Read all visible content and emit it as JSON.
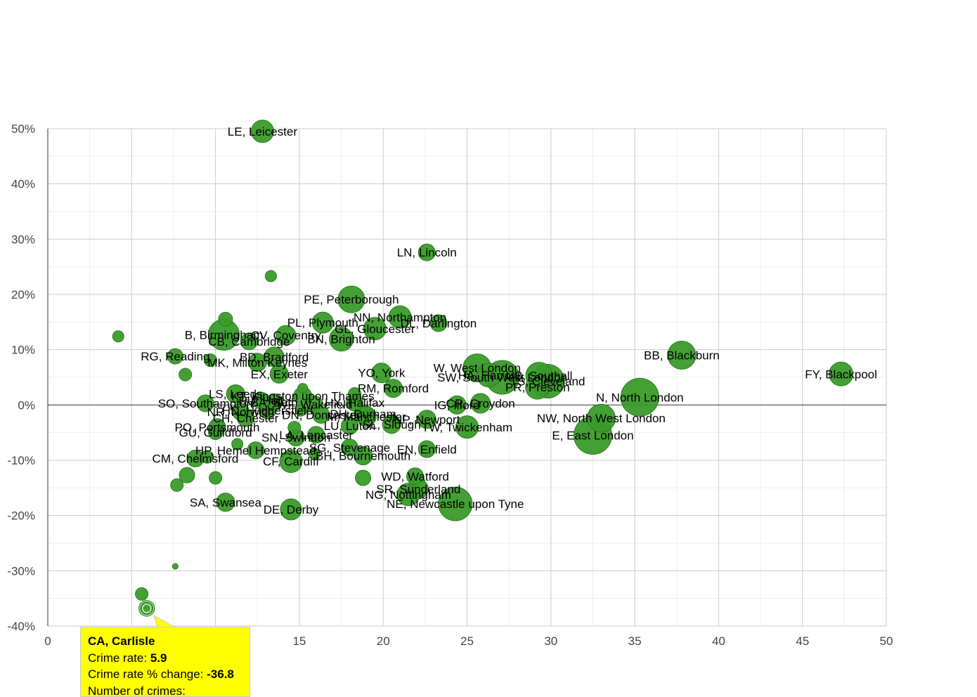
{
  "chart_data": {
    "type": "scatter",
    "variant": "bubble",
    "title": "",
    "xlabel": "",
    "ylabel": "",
    "xlim": [
      0,
      50
    ],
    "ylim": [
      -40,
      50
    ],
    "x_ticks": [
      "0",
      "5",
      "10",
      "15",
      "20",
      "25",
      "30",
      "35",
      "40",
      "45",
      "50"
    ],
    "y_ticks": [
      "-40%",
      "-30%",
      "-20%",
      "-10%",
      "0%",
      "10%",
      "20%",
      "30%",
      "40%",
      "50%"
    ],
    "grid": true,
    "colors": {
      "bubble": "#2ca02c",
      "bubble_fill": "#3a9b2a",
      "bubble_stroke": "#2a7d1e",
      "grid": "#cccccc",
      "minor_grid": "#eeeeee",
      "zero_line": "#333333",
      "tooltip_bg": "#ffff00"
    },
    "points": [
      {
        "label": "LE, Leicester",
        "x": 12.8,
        "y": 49.5,
        "size": 16
      },
      {
        "label": "LN, Lincoln",
        "x": 22.6,
        "y": 27.6,
        "size": 12
      },
      {
        "label": "",
        "x": 13.3,
        "y": 23.3,
        "size": 8
      },
      {
        "label": "PE, Peterborough",
        "x": 18.1,
        "y": 19.1,
        "size": 19
      },
      {
        "label": "NN, Northampton",
        "x": 21.0,
        "y": 15.9,
        "size": 16
      },
      {
        "label": "DL, Darlington",
        "x": 23.3,
        "y": 14.8,
        "size": 12
      },
      {
        "label": "PL, Plymouth",
        "x": 16.4,
        "y": 14.9,
        "size": 15
      },
      {
        "label": "GL, Gloucester",
        "x": 19.5,
        "y": 13.8,
        "size": 16
      },
      {
        "label": "BN, Brighton",
        "x": 17.5,
        "y": 11.9,
        "size": 17
      },
      {
        "label": "B, Birmingham",
        "x": 10.5,
        "y": 12.7,
        "size": 22
      },
      {
        "label": "CV, Coventry",
        "x": 14.2,
        "y": 12.6,
        "size": 14
      },
      {
        "label": "CB, Cambridge",
        "x": 12.0,
        "y": 11.5,
        "size": 12
      },
      {
        "label": "",
        "x": 10.6,
        "y": 15.5,
        "size": 10
      },
      {
        "label": "",
        "x": 4.2,
        "y": 12.4,
        "size": 8
      },
      {
        "label": "RG, Reading",
        "x": 7.6,
        "y": 8.8,
        "size": 11
      },
      {
        "label": "BD, Bradford",
        "x": 13.5,
        "y": 8.7,
        "size": 14
      },
      {
        "label": "MK, Milton Keynes",
        "x": 12.5,
        "y": 7.7,
        "size": 13
      },
      {
        "label": "",
        "x": 9.7,
        "y": 8.1,
        "size": 9
      },
      {
        "label": "EX, Exeter",
        "x": 13.8,
        "y": 5.6,
        "size": 13
      },
      {
        "label": "",
        "x": 8.2,
        "y": 5.5,
        "size": 9
      },
      {
        "label": "YO, York",
        "x": 19.9,
        "y": 5.8,
        "size": 14
      },
      {
        "label": "RM, Romford",
        "x": 20.6,
        "y": 3.0,
        "size": 13
      },
      {
        "label": "W, West London",
        "x": 25.6,
        "y": 6.7,
        "size": 20
      },
      {
        "label": "HA, Harrow",
        "x": 26.3,
        "y": 5.4,
        "size": 17
      },
      {
        "label": "SW, South West London",
        "x": 27.1,
        "y": 5.0,
        "size": 24
      },
      {
        "label": "UB, Southall",
        "x": 29.3,
        "y": 5.3,
        "size": 19
      },
      {
        "label": "TS, Cleveland",
        "x": 29.8,
        "y": 4.3,
        "size": 24
      },
      {
        "label": "PR, Preston",
        "x": 29.2,
        "y": 3.2,
        "size": 17
      },
      {
        "label": "N, North London",
        "x": 35.3,
        "y": 1.4,
        "size": 27
      },
      {
        "label": "BB, Blackburn",
        "x": 37.8,
        "y": 9.0,
        "size": 20
      },
      {
        "label": "FY, Blackpool",
        "x": 47.3,
        "y": 5.6,
        "size": 17
      },
      {
        "label": "IG, Ilford",
        "x": 24.4,
        "y": 0.0,
        "size": 13
      },
      {
        "label": "CR, Croydon",
        "x": 25.8,
        "y": 0.3,
        "size": 14
      },
      {
        "label": "NW, North West London",
        "x": 33.0,
        "y": -2.4,
        "size": 20
      },
      {
        "label": "E, East London",
        "x": 32.5,
        "y": -5.5,
        "size": 27
      },
      {
        "label": "TW, Twickenham",
        "x": 25.0,
        "y": -4.0,
        "size": 16
      },
      {
        "label": "NP, Newport",
        "x": 22.6,
        "y": -2.6,
        "size": 13
      },
      {
        "label": "LS, Leeds",
        "x": 11.2,
        "y": 2.0,
        "size": 13
      },
      {
        "label": "KT, Kingston upon Thames",
        "x": 15.2,
        "y": 1.6,
        "size": 13
      },
      {
        "label": "HU, Hull",
        "x": 12.7,
        "y": 0.8,
        "size": 12
      },
      {
        "label": "BA, Bath",
        "x": 13.5,
        "y": 0.5,
        "size": 12
      },
      {
        "label": "SO, Southampton",
        "x": 9.4,
        "y": 0.3,
        "size": 12
      },
      {
        "label": "WF, Wakefield",
        "x": 15.9,
        "y": 0.1,
        "size": 12
      },
      {
        "label": "HX, Halifax",
        "x": 18.3,
        "y": 0.4,
        "size": 12
      },
      {
        "label": "NR, Norwich",
        "x": 11.5,
        "y": -1.2,
        "size": 12
      },
      {
        "label": "HD, Huddersfield",
        "x": 13.1,
        "y": -1.0,
        "size": 12
      },
      {
        "label": "DH, Durham",
        "x": 18.8,
        "y": -1.6,
        "size": 13
      },
      {
        "label": "DN, Doncaster",
        "x": 16.3,
        "y": -1.8,
        "size": 12
      },
      {
        "label": "CH, Chester",
        "x": 11.8,
        "y": -2.4,
        "size": 12
      },
      {
        "label": "M, Manchester",
        "x": 19.0,
        "y": -2.1,
        "size": 14
      },
      {
        "label": "PO, Portsmouth",
        "x": 10.1,
        "y": -4.0,
        "size": 12
      },
      {
        "label": "GU, Guildford",
        "x": 10.0,
        "y": -5.0,
        "size": 10
      },
      {
        "label": "LU, Luton",
        "x": 18.0,
        "y": -3.8,
        "size": 12
      },
      {
        "label": "SL, Slough",
        "x": 20.5,
        "y": -3.5,
        "size": 13
      },
      {
        "label": "LA, Lancaster",
        "x": 16.0,
        "y": -5.4,
        "size": 12
      },
      {
        "label": "SN, Swindon",
        "x": 14.8,
        "y": -5.9,
        "size": 12
      },
      {
        "label": "",
        "x": 15.1,
        "y": -1.0,
        "size": 8
      },
      {
        "label": "",
        "x": 14.7,
        "y": -4.1,
        "size": 9
      },
      {
        "label": "",
        "x": 15.2,
        "y": 3.0,
        "size": 7
      },
      {
        "label": "",
        "x": 18.3,
        "y": 2.0,
        "size": 9
      },
      {
        "label": "HP, Hemel Hempstead",
        "x": 12.4,
        "y": -8.2,
        "size": 12
      },
      {
        "label": "",
        "x": 11.3,
        "y": -7.1,
        "size": 8
      },
      {
        "label": "SG, Stevenage",
        "x": 18.0,
        "y": -7.7,
        "size": 12
      },
      {
        "label": "EN, Enfield",
        "x": 22.6,
        "y": -8.0,
        "size": 12
      },
      {
        "label": "BH, Bournemouth",
        "x": 18.8,
        "y": -9.2,
        "size": 13
      },
      {
        "label": "CF, Cardiff",
        "x": 14.5,
        "y": -10.2,
        "size": 16
      },
      {
        "label": "",
        "x": 15.9,
        "y": -8.9,
        "size": 8
      },
      {
        "label": "CM, Chelmsford",
        "x": 8.8,
        "y": -9.7,
        "size": 12
      },
      {
        "label": "",
        "x": 9.5,
        "y": -9.4,
        "size": 9
      },
      {
        "label": "",
        "x": 8.3,
        "y": -12.7,
        "size": 11
      },
      {
        "label": "",
        "x": 10.0,
        "y": -13.2,
        "size": 9
      },
      {
        "label": "",
        "x": 7.7,
        "y": -14.5,
        "size": 9
      },
      {
        "label": "WD, Watford",
        "x": 21.9,
        "y": -12.9,
        "size": 12
      },
      {
        "label": "",
        "x": 18.8,
        "y": -13.2,
        "size": 11
      },
      {
        "label": "SR, Sunderland",
        "x": 22.1,
        "y": -15.2,
        "size": 14
      },
      {
        "label": "NG, Nottingham",
        "x": 21.5,
        "y": -16.2,
        "size": 16
      },
      {
        "label": "NE, Newcastle upon Tyne",
        "x": 24.3,
        "y": -17.9,
        "size": 24
      },
      {
        "label": "SA, Swansea",
        "x": 10.6,
        "y": -17.6,
        "size": 13
      },
      {
        "label": "DE, Derby",
        "x": 14.5,
        "y": -18.9,
        "size": 15
      },
      {
        "label": "",
        "x": 7.6,
        "y": -29.2,
        "size": 4
      },
      {
        "label": "",
        "x": 5.6,
        "y": -34.2,
        "size": 9
      },
      {
        "label": "CA, Carlisle",
        "x": 5.9,
        "y": -36.8,
        "size": 9,
        "highlighted": true
      }
    ]
  },
  "tooltip": {
    "title": "CA, Carlisle",
    "rate_label": "Crime rate:",
    "rate_value": "5.9",
    "change_label": "Crime rate % change:",
    "change_value": "-36.8",
    "count_label": "Number of crimes:"
  }
}
